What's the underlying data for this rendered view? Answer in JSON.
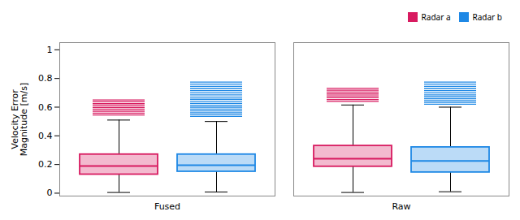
{
  "chart_data": {
    "type": "box",
    "ylabel": "Velocity Error\nMagnitude [m/s]",
    "categories": [
      "Fused",
      "Raw"
    ],
    "series": [
      {
        "name": "Radar a",
        "color": "#D81B60",
        "values": [
          {
            "whislo": 0.005,
            "q1": 0.13,
            "med": 0.19,
            "q3": 0.27,
            "whishi": 0.51,
            "fliers": [
              0.545,
              0.558,
              0.571,
              0.584,
              0.597,
              0.61,
              0.624,
              0.637,
              0.65
            ]
          },
          {
            "whislo": 0.005,
            "q1": 0.185,
            "med": 0.24,
            "q3": 0.33,
            "whishi": 0.615,
            "fliers": [
              0.64,
              0.653,
              0.666,
              0.679,
              0.692,
              0.705,
              0.718,
              0.731
            ]
          }
        ]
      },
      {
        "name": "Radar b",
        "color": "#1E88E5",
        "values": [
          {
            "whislo": 0.008,
            "q1": 0.15,
            "med": 0.195,
            "q3": 0.27,
            "whishi": 0.5,
            "fliers": [
              0.535,
              0.548,
              0.561,
              0.574,
              0.587,
              0.6,
              0.613,
              0.626,
              0.64,
              0.655,
              0.67,
              0.685,
              0.7,
              0.715,
              0.73,
              0.745,
              0.76,
              0.775
            ]
          },
          {
            "whislo": 0.01,
            "q1": 0.145,
            "med": 0.225,
            "q3": 0.32,
            "whishi": 0.6,
            "fliers": [
              0.62,
              0.633,
              0.646,
              0.659,
              0.672,
              0.685,
              0.7,
              0.715,
              0.73,
              0.745,
              0.76,
              0.775
            ]
          }
        ]
      }
    ],
    "ylim": [
      -0.02,
      1.05
    ],
    "yticks": [
      0,
      0.2,
      0.4,
      0.6,
      0.8,
      1.0
    ],
    "legend": "upper right"
  }
}
